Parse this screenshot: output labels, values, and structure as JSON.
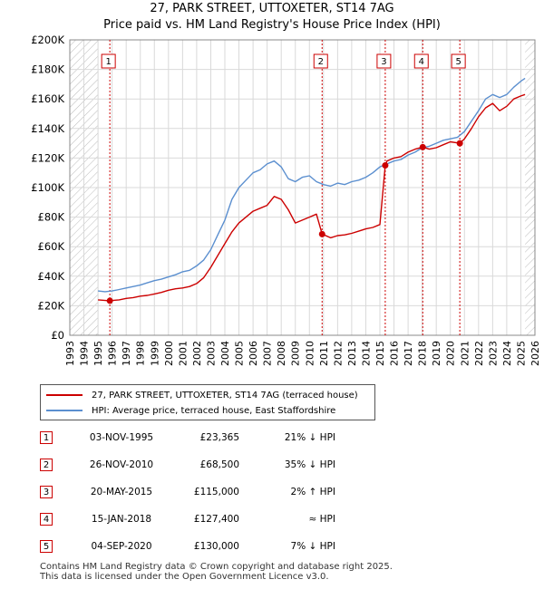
{
  "title_line1": "27, PARK STREET, UTTOXETER, ST14 7AG",
  "title_line2": "Price paid vs. HM Land Registry's House Price Index (HPI)",
  "colors": {
    "price_paid": "#cc0000",
    "hpi": "#5b8fcf",
    "grid": "#d9d9d9",
    "hatch": "#bbbbbb",
    "marker_line": "#cc0000"
  },
  "chart_data": {
    "type": "line",
    "title": "27, PARK STREET, UTTOXETER, ST14 7AG — Price paid vs. HM Land Registry's House Price Index (HPI)",
    "xlabel": "",
    "ylabel": "",
    "xlim": [
      1993,
      2026
    ],
    "ylim": [
      0,
      200000
    ],
    "grid": true,
    "x_ticks": [
      "1993",
      "1994",
      "1995",
      "1996",
      "1997",
      "1998",
      "1999",
      "2000",
      "2001",
      "2002",
      "2003",
      "2004",
      "2005",
      "2006",
      "2007",
      "2008",
      "2009",
      "2010",
      "2011",
      "2012",
      "2013",
      "2014",
      "2015",
      "2016",
      "2017",
      "2018",
      "2019",
      "2020",
      "2021",
      "2022",
      "2023",
      "2024",
      "2025",
      "2026"
    ],
    "y_ticks": [
      {
        "value": 0,
        "label": "£0"
      },
      {
        "value": 20000,
        "label": "£20K"
      },
      {
        "value": 40000,
        "label": "£40K"
      },
      {
        "value": 60000,
        "label": "£60K"
      },
      {
        "value": 80000,
        "label": "£80K"
      },
      {
        "value": 100000,
        "label": "£100K"
      },
      {
        "value": 120000,
        "label": "£120K"
      },
      {
        "value": 140000,
        "label": "£140K"
      },
      {
        "value": 160000,
        "label": "£160K"
      },
      {
        "value": 180000,
        "label": "£180K"
      },
      {
        "value": 200000,
        "label": "£200K"
      }
    ],
    "hatched_ranges": [
      [
        1993,
        1995.0
      ],
      [
        2025.3,
        2026
      ]
    ],
    "series": [
      {
        "name": "HPI: Average price, terraced house, East Staffordshire",
        "x": [
          1995.0,
          1995.5,
          1996.0,
          1996.5,
          1997.0,
          1997.5,
          1998.0,
          1998.5,
          1999.0,
          1999.5,
          2000.0,
          2000.5,
          2001.0,
          2001.5,
          2002.0,
          2002.5,
          2003.0,
          2003.5,
          2004.0,
          2004.5,
          2005.0,
          2005.5,
          2006.0,
          2006.5,
          2007.0,
          2007.5,
          2008.0,
          2008.5,
          2009.0,
          2009.5,
          2010.0,
          2010.5,
          2011.0,
          2011.5,
          2012.0,
          2012.5,
          2013.0,
          2013.5,
          2014.0,
          2014.5,
          2015.0,
          2015.5,
          2016.0,
          2016.5,
          2017.0,
          2017.5,
          2018.0,
          2018.5,
          2019.0,
          2019.5,
          2020.0,
          2020.5,
          2021.0,
          2021.5,
          2022.0,
          2022.5,
          2023.0,
          2023.5,
          2024.0,
          2024.5,
          2025.0,
          2025.3
        ],
        "values": [
          30000,
          29500,
          30000,
          31000,
          32000,
          33000,
          34000,
          35500,
          37000,
          38000,
          39500,
          41000,
          43000,
          44000,
          47000,
          51000,
          58000,
          68000,
          78000,
          92000,
          100000,
          105000,
          110000,
          112000,
          116000,
          118000,
          114000,
          106000,
          104000,
          107000,
          108000,
          104000,
          102000,
          101000,
          103000,
          102000,
          104000,
          105000,
          107000,
          110000,
          114000,
          116000,
          118000,
          119000,
          122000,
          124000,
          127000,
          128000,
          130000,
          132000,
          133000,
          134000,
          138000,
          145000,
          152000,
          160000,
          163000,
          161000,
          163000,
          168000,
          172000,
          174000
        ]
      },
      {
        "name": "27, PARK STREET, UTTOXETER, ST14 7AG (terraced house)",
        "x": [
          1995.0,
          1995.84,
          1996.5,
          1997.0,
          1997.5,
          1998.0,
          1998.5,
          1999.0,
          1999.5,
          2000.0,
          2000.5,
          2001.0,
          2001.5,
          2002.0,
          2002.5,
          2003.0,
          2003.5,
          2004.0,
          2004.5,
          2005.0,
          2005.5,
          2006.0,
          2006.5,
          2007.0,
          2007.5,
          2008.0,
          2008.5,
          2009.0,
          2009.5,
          2010.0,
          2010.5,
          2010.9,
          2011.5,
          2012.0,
          2012.5,
          2013.0,
          2013.5,
          2014.0,
          2014.5,
          2015.0,
          2015.38,
          2015.5,
          2016.0,
          2016.5,
          2017.0,
          2017.5,
          2018.04,
          2018.5,
          2019.0,
          2019.5,
          2020.0,
          2020.67,
          2021.0,
          2021.5,
          2022.0,
          2022.5,
          2023.0,
          2023.5,
          2024.0,
          2024.5,
          2025.0,
          2025.3
        ],
        "values": [
          24000,
          23365,
          24000,
          25000,
          25500,
          26500,
          27000,
          28000,
          29000,
          30500,
          31500,
          32000,
          33000,
          35000,
          39000,
          46000,
          54000,
          62000,
          70000,
          76000,
          80000,
          84000,
          86000,
          88000,
          94000,
          92000,
          85000,
          76000,
          78000,
          80000,
          82000,
          68500,
          66000,
          67500,
          68000,
          69000,
          70500,
          72000,
          73000,
          75000,
          115000,
          118000,
          120000,
          121000,
          124000,
          126000,
          127400,
          126000,
          127000,
          129000,
          131000,
          130000,
          133000,
          140000,
          148000,
          154000,
          157000,
          152000,
          155000,
          160000,
          162000,
          163000
        ]
      }
    ],
    "sales_markers": [
      {
        "label": "1",
        "year": 1995.84,
        "price": 23365
      },
      {
        "label": "2",
        "year": 2010.9,
        "price": 68500
      },
      {
        "label": "3",
        "year": 2015.38,
        "price": 115000
      },
      {
        "label": "4",
        "year": 2018.04,
        "price": 127400
      },
      {
        "label": "5",
        "year": 2020.67,
        "price": 130000
      }
    ]
  },
  "legend": {
    "price_paid_label": "27, PARK STREET, UTTOXETER, ST14 7AG (terraced house)",
    "hpi_label": "HPI: Average price, terraced house, East Staffordshire"
  },
  "sales": [
    {
      "num": "1",
      "date": "03-NOV-1995",
      "price": "£23,365",
      "hpi": "21% ↓ HPI"
    },
    {
      "num": "2",
      "date": "26-NOV-2010",
      "price": "£68,500",
      "hpi": "35% ↓ HPI"
    },
    {
      "num": "3",
      "date": "20-MAY-2015",
      "price": "£115,000",
      "hpi": "2% ↑ HPI"
    },
    {
      "num": "4",
      "date": "15-JAN-2018",
      "price": "£127,400",
      "hpi": "≈ HPI"
    },
    {
      "num": "5",
      "date": "04-SEP-2020",
      "price": "£130,000",
      "hpi": "7% ↓ HPI"
    }
  ],
  "footer": {
    "line1": "Contains HM Land Registry data © Crown copyright and database right 2025.",
    "line2": "This data is licensed under the Open Government Licence v3.0."
  }
}
